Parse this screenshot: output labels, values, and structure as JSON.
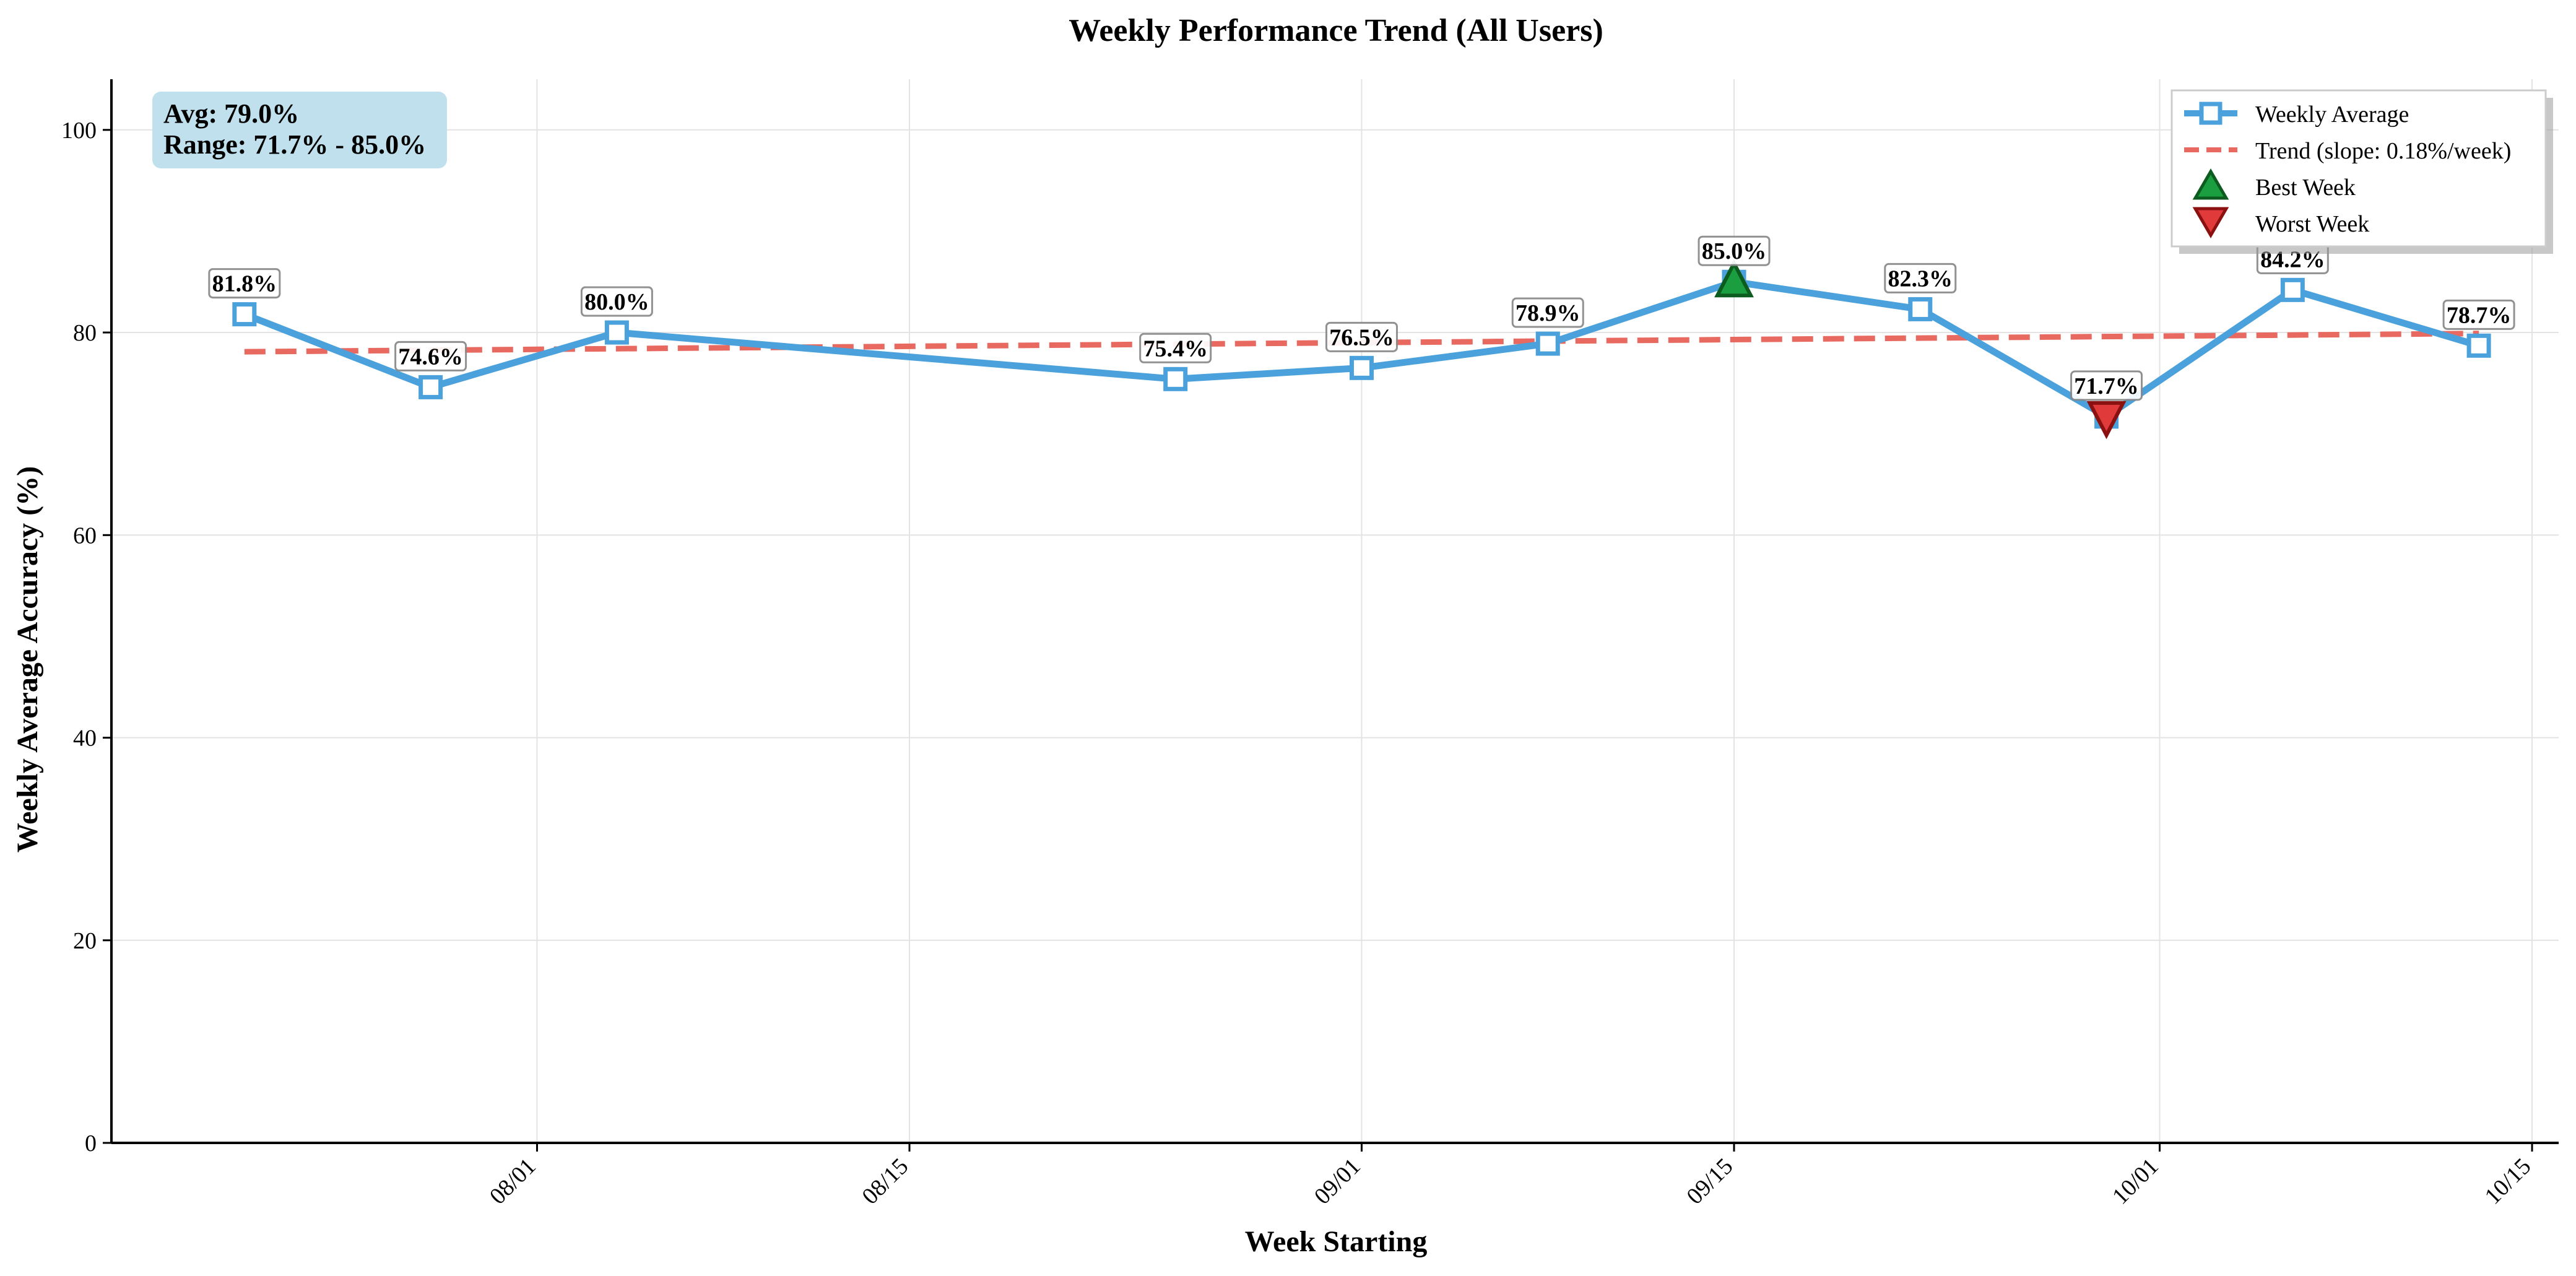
{
  "chart_data": {
    "type": "line",
    "title": "Weekly Performance Trend (All Users)",
    "xlabel": "Week Starting",
    "ylabel": "Weekly Average Accuracy (%)",
    "x_axis_type": "date",
    "xlim": [
      "2024-07-16",
      "2024-10-16"
    ],
    "ylim": [
      0,
      105
    ],
    "grid": true,
    "legend_position": "top-right",
    "x_ticks": [
      {
        "date": "2024-08-01",
        "label": "08/01"
      },
      {
        "date": "2024-08-15",
        "label": "08/15"
      },
      {
        "date": "2024-09-01",
        "label": "09/01"
      },
      {
        "date": "2024-09-15",
        "label": "09/15"
      },
      {
        "date": "2024-10-01",
        "label": "10/01"
      },
      {
        "date": "2024-10-15",
        "label": "10/15"
      }
    ],
    "y_ticks": [
      0,
      20,
      40,
      60,
      80,
      100
    ],
    "series": [
      {
        "name": "Weekly Average",
        "color": "#4aa1dc",
        "marker": "square",
        "points": [
          {
            "x": "2024-07-21",
            "y": 81.8,
            "label": "81.8%"
          },
          {
            "x": "2024-07-28",
            "y": 74.6,
            "label": "74.6%"
          },
          {
            "x": "2024-08-04",
            "y": 80.0,
            "label": "80.0%"
          },
          {
            "x": "2024-08-25",
            "y": 75.4,
            "label": "75.4%"
          },
          {
            "x": "2024-09-01",
            "y": 76.5,
            "label": "76.5%"
          },
          {
            "x": "2024-09-08",
            "y": 78.9,
            "label": "78.9%"
          },
          {
            "x": "2024-09-15",
            "y": 85.0,
            "label": "85.0%"
          },
          {
            "x": "2024-09-22",
            "y": 82.3,
            "label": "82.3%"
          },
          {
            "x": "2024-09-29",
            "y": 71.7,
            "label": "71.7%"
          },
          {
            "x": "2024-10-06",
            "y": 84.2,
            "label": "84.2%"
          },
          {
            "x": "2024-10-13",
            "y": 78.7,
            "label": "78.7%"
          }
        ]
      },
      {
        "name": "Trend (slope: 0.18%/week)",
        "color": "#e8695f",
        "style": "dashed",
        "points": [
          {
            "x": "2024-07-21",
            "y": 78.1
          },
          {
            "x": "2024-10-13",
            "y": 79.9
          }
        ]
      },
      {
        "name": "Best Week",
        "color": "#1a9e3f",
        "edge_color": "#0d5c1f",
        "marker": "triangle-up",
        "points": [
          {
            "x": "2024-09-15",
            "y": 85.0
          }
        ]
      },
      {
        "name": "Worst Week",
        "color": "#e03a3a",
        "edge_color": "#8b1010",
        "marker": "triangle-down",
        "points": [
          {
            "x": "2024-09-29",
            "y": 71.7
          }
        ]
      }
    ],
    "stats_box": {
      "line1": "Avg: 79.0%",
      "line2": "Range: 71.7% - 85.0%",
      "background": "#bfe0ec"
    }
  }
}
